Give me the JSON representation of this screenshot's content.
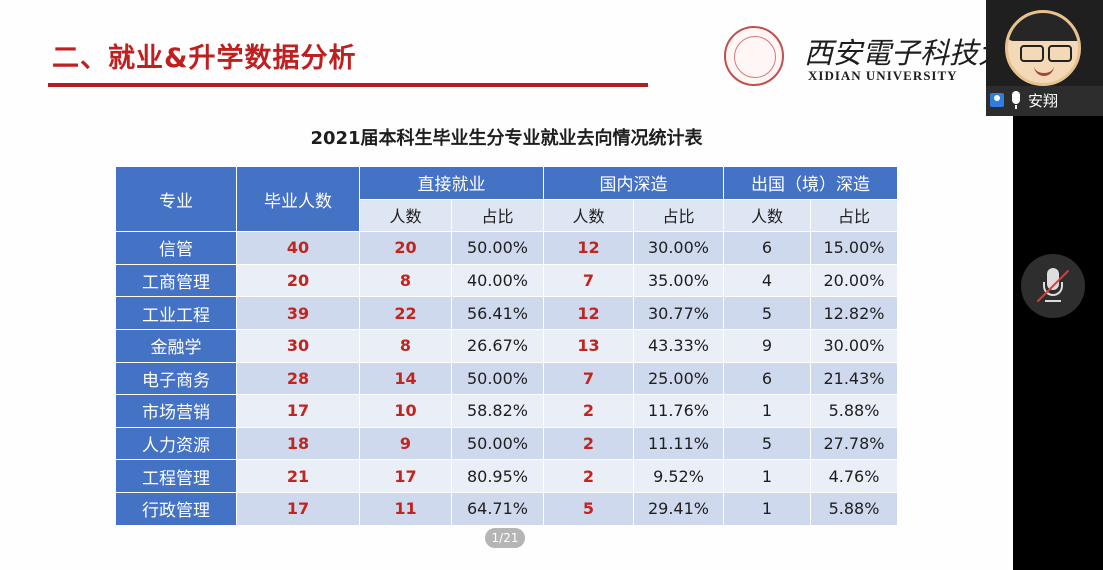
{
  "slide": {
    "title": "二、就业&升学数据分析",
    "logo": {
      "cn": "西安電子科技大學",
      "en": "XIDIAN UNIVERSITY"
    },
    "table_title": "2021届本科生毕业生分专业就业去向情况统计表",
    "table": {
      "header": {
        "major": "专业",
        "graduates": "毕业人数",
        "employment": "直接就业",
        "domestic": "国内深造",
        "abroad": "出国（境）深造",
        "count": "人数",
        "ratio": "占比"
      },
      "rows": [
        [
          "信管",
          "40",
          "20",
          "50.00%",
          "12",
          "30.00%",
          "6",
          "15.00%"
        ],
        [
          "工商管理",
          "20",
          "8",
          "40.00%",
          "7",
          "35.00%",
          "4",
          "20.00%"
        ],
        [
          "工业工程",
          "39",
          "22",
          "56.41%",
          "12",
          "30.77%",
          "5",
          "12.82%"
        ],
        [
          "金融学",
          "30",
          "8",
          "26.67%",
          "13",
          "43.33%",
          "9",
          "30.00%"
        ],
        [
          "电子商务",
          "28",
          "14",
          "50.00%",
          "7",
          "25.00%",
          "6",
          "21.43%"
        ],
        [
          "市场营销",
          "17",
          "10",
          "58.82%",
          "2",
          "11.76%",
          "1",
          "5.88%"
        ],
        [
          "人力资源",
          "18",
          "9",
          "50.00%",
          "2",
          "11.11%",
          "5",
          "27.78%"
        ],
        [
          "工程管理",
          "21",
          "17",
          "80.95%",
          "2",
          "9.52%",
          "1",
          "4.76%"
        ],
        [
          "行政管理",
          "17",
          "11",
          "64.71%",
          "5",
          "29.41%",
          "1",
          "5.88%"
        ]
      ]
    },
    "pager": "1/21"
  },
  "meeting": {
    "participant_name": "安翔",
    "icons": {
      "user": "user-icon",
      "mic": "microphone-icon",
      "mute": "microphone-muted-icon"
    }
  },
  "colors": {
    "title_red": "#c01f1f",
    "header_blue": "#4472c4",
    "value_red": "#c0261f"
  }
}
